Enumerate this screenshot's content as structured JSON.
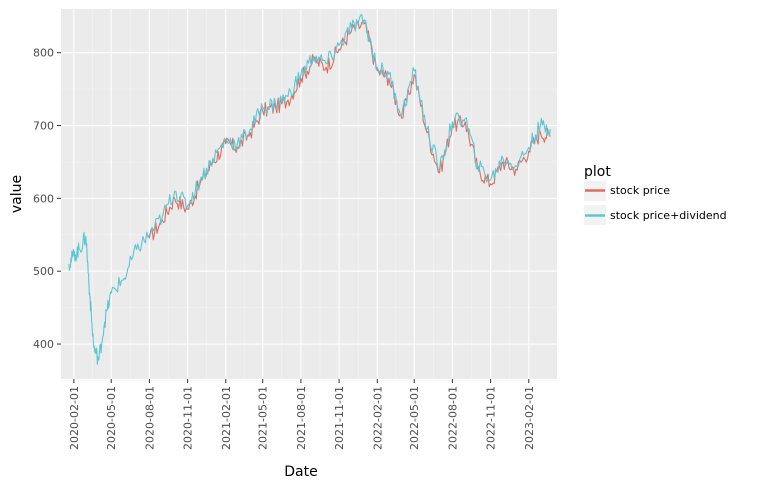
{
  "chart_data": {
    "type": "line",
    "title": "",
    "xlabel": "Date",
    "ylabel": "value",
    "x_tick_labels": [
      "2020-02-01",
      "2020-05-01",
      "2020-08-01",
      "2020-11-01",
      "2021-02-01",
      "2021-05-01",
      "2021-08-01",
      "2021-11-01",
      "2022-02-01",
      "2022-05-01",
      "2022-08-01",
      "2022-11-01",
      "2023-02-01"
    ],
    "y_ticks": [
      400,
      500,
      600,
      700,
      800
    ],
    "ylim": [
      352,
      860
    ],
    "xlim": [
      "2020-01-01",
      "2023-04-10"
    ],
    "grid": true,
    "legend": {
      "title": "plot",
      "position": "right"
    },
    "series": [
      {
        "name": "stock price",
        "color": "#e06c5f",
        "x": [
          "2020-08-01",
          "2020-09-01",
          "2020-10-01",
          "2020-11-01",
          "2020-12-01",
          "2021-01-01",
          "2021-02-01",
          "2021-03-01",
          "2021-04-01",
          "2021-05-01",
          "2021-06-01",
          "2021-07-01",
          "2021-08-01",
          "2021-09-01",
          "2021-10-01",
          "2021-11-01",
          "2021-12-01",
          "2022-01-01",
          "2022-02-01",
          "2022-03-01",
          "2022-04-01",
          "2022-05-01",
          "2022-06-01",
          "2022-07-01",
          "2022-08-01",
          "2022-09-01",
          "2022-10-01",
          "2022-11-01",
          "2022-12-01",
          "2023-01-01",
          "2023-02-01",
          "2023-03-01",
          "2023-03-25"
        ],
        "values": [
          545,
          570,
          600,
          585,
          620,
          650,
          675,
          670,
          690,
          720,
          725,
          735,
          765,
          790,
          780,
          805,
          830,
          840,
          775,
          765,
          710,
          770,
          690,
          635,
          700,
          705,
          640,
          620,
          650,
          640,
          665,
          690,
          685
        ]
      },
      {
        "name": "stock price+dividend",
        "color": "#5bc6d4",
        "x": [
          "2020-01-20",
          "2020-02-01",
          "2020-02-15",
          "2020-03-01",
          "2020-03-10",
          "2020-03-20",
          "2020-04-01",
          "2020-04-15",
          "2020-05-01",
          "2020-06-01",
          "2020-07-01",
          "2020-08-01",
          "2020-09-01",
          "2020-10-01",
          "2020-11-01",
          "2020-12-01",
          "2021-01-01",
          "2021-02-01",
          "2021-03-01",
          "2021-04-01",
          "2021-05-01",
          "2021-06-01",
          "2021-07-01",
          "2021-08-01",
          "2021-09-01",
          "2021-10-01",
          "2021-11-01",
          "2021-12-01",
          "2022-01-01",
          "2022-02-01",
          "2022-03-01",
          "2022-04-01",
          "2022-05-01",
          "2022-06-01",
          "2022-07-01",
          "2022-08-01",
          "2022-09-01",
          "2022-10-01",
          "2022-11-01",
          "2022-12-01",
          "2023-01-01",
          "2023-02-01",
          "2023-03-01",
          "2023-03-25"
        ],
        "values": [
          510,
          522,
          530,
          548,
          470,
          395,
          378,
          430,
          470,
          490,
          530,
          550,
          575,
          610,
          590,
          625,
          655,
          680,
          675,
          695,
          725,
          730,
          740,
          770,
          795,
          785,
          810,
          835,
          845,
          780,
          770,
          715,
          775,
          695,
          640,
          705,
          710,
          645,
          625,
          655,
          645,
          670,
          700,
          695
        ]
      }
    ]
  }
}
